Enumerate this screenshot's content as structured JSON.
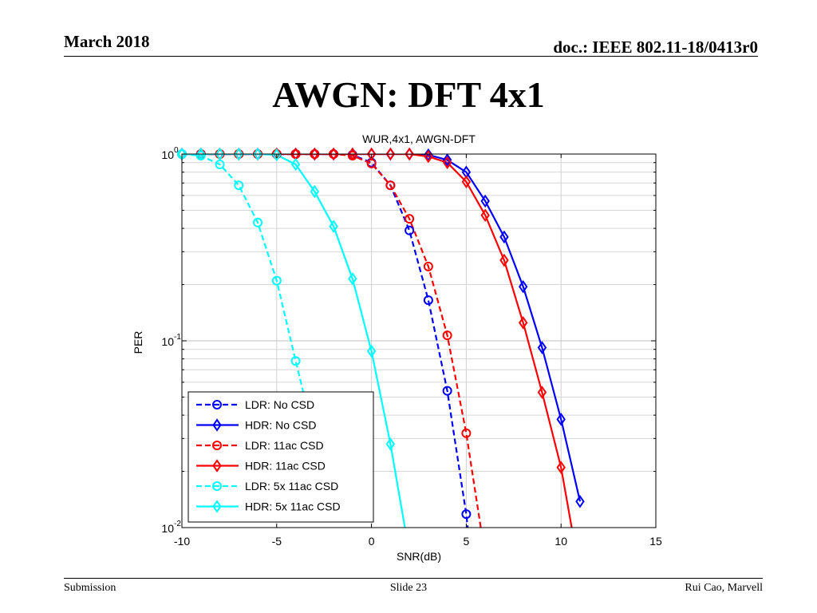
{
  "header": {
    "date": "March 2018",
    "doc": "doc.: IEEE 802.11-18/0413r0"
  },
  "slide_title": "AWGN: DFT 4x1",
  "footer": {
    "left": "Submission",
    "center": "Slide 23",
    "right": "Rui Cao, Marvell"
  },
  "chart_data": {
    "type": "line",
    "title": "WUR,4x1, AWGN-DFT",
    "xlabel": "SNR(dB)",
    "ylabel": "PER",
    "xlim": [
      -10,
      15
    ],
    "ylim": [
      0.01,
      1
    ],
    "y_scale": "log",
    "grid": true,
    "legend_position": "bottom-left",
    "x_ticks": [
      "-10",
      "-5",
      "0",
      "5",
      "10",
      "15"
    ],
    "y_ticks": [
      {
        "base": "10",
        "exp": "0",
        "value": 1
      },
      {
        "base": "10",
        "exp": "-1",
        "value": 0.1
      },
      {
        "base": "10",
        "exp": "-2",
        "value": 0.01
      }
    ],
    "series": [
      {
        "name": "LDR: No CSD",
        "color": "#0000ff",
        "dash": true,
        "marker": "circle",
        "x": [
          -10,
          -9,
          -8,
          -7,
          -6,
          -5,
          -4,
          -3,
          -2,
          -1,
          0,
          1,
          2,
          3,
          4,
          5
        ],
        "y": [
          1,
          1,
          1,
          1,
          1,
          1,
          1,
          1,
          1,
          0.99,
          0.9,
          0.68,
          0.39,
          0.165,
          0.054,
          0.0118
        ],
        "tail": [
          5.1,
          0.0095
        ]
      },
      {
        "name": "HDR: No CSD",
        "color": "#0000ff",
        "dash": false,
        "marker": "diamond",
        "x": [
          -10,
          -9,
          -8,
          -7,
          -6,
          -5,
          -4,
          -3,
          -2,
          -1,
          0,
          1,
          2,
          3,
          4,
          5,
          6,
          7,
          8,
          9,
          10,
          11
        ],
        "y": [
          1,
          1,
          1,
          1,
          1,
          1,
          1,
          1,
          1,
          1,
          1,
          1,
          1,
          0.99,
          0.93,
          0.8,
          0.56,
          0.36,
          0.195,
          0.092,
          0.038,
          0.0138
        ]
      },
      {
        "name": "LDR: 11ac CSD",
        "color": "#ff0000",
        "dash": true,
        "marker": "circle",
        "x": [
          -10,
          -9,
          -8,
          -7,
          -6,
          -5,
          -4,
          -3,
          -2,
          -1,
          0,
          1,
          2,
          3,
          4,
          5
        ],
        "y": [
          1,
          1,
          1,
          1,
          1,
          1,
          1,
          1,
          1,
          0.98,
          0.89,
          0.68,
          0.45,
          0.25,
          0.107,
          0.032
        ],
        "tail": [
          5.8,
          0.0095
        ]
      },
      {
        "name": "HDR: 11ac CSD",
        "color": "#ff0000",
        "dash": false,
        "marker": "diamond",
        "x": [
          -10,
          -9,
          -8,
          -7,
          -6,
          -5,
          -4,
          -3,
          -2,
          -1,
          0,
          1,
          2,
          3,
          4,
          5,
          6,
          7,
          8,
          9,
          10
        ],
        "y": [
          1,
          1,
          1,
          1,
          1,
          1,
          1,
          1,
          1,
          1,
          1,
          1,
          1,
          0.97,
          0.9,
          0.71,
          0.47,
          0.27,
          0.125,
          0.053,
          0.021
        ],
        "tail": [
          10.6,
          0.0095
        ]
      },
      {
        "name": "LDR: 5x 11ac CSD",
        "color": "#00ffff",
        "dash": true,
        "marker": "circle",
        "x": [
          -10,
          -9,
          -8,
          -7,
          -6,
          -5,
          -4
        ],
        "y": [
          1,
          0.98,
          0.88,
          0.68,
          0.43,
          0.21,
          0.078
        ],
        "tail": [
          -3.3,
          0.04
        ]
      },
      {
        "name": "HDR: 5x 11ac CSD",
        "color": "#00ffff",
        "dash": false,
        "marker": "diamond",
        "x": [
          -10,
          -9,
          -8,
          -7,
          -6,
          -5,
          -4,
          -3,
          -2,
          -1,
          0,
          1
        ],
        "y": [
          1,
          1,
          1,
          1,
          1,
          0.99,
          0.88,
          0.63,
          0.41,
          0.215,
          0.088,
          0.028
        ],
        "tail": [
          1.8,
          0.0095
        ]
      }
    ]
  }
}
